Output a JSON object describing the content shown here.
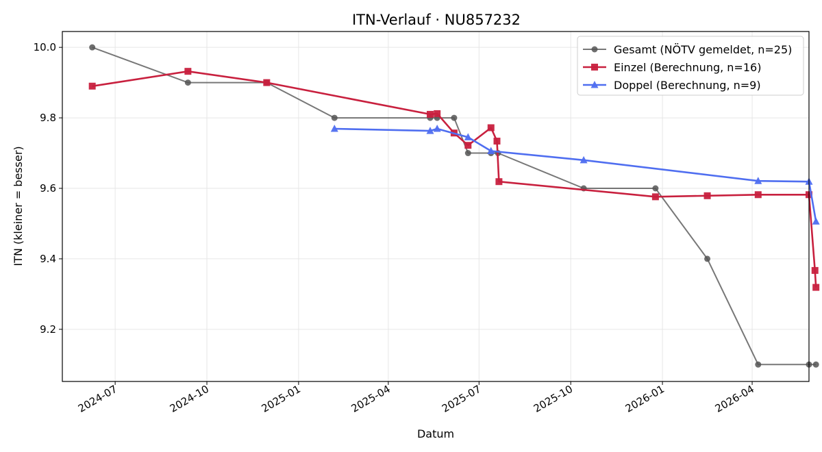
{
  "chart_data": {
    "type": "line",
    "title": "ITN-Verlauf · NU857232",
    "xlabel": "Datum",
    "ylabel": "ITN  (kleiner = besser)",
    "x_type": "date",
    "xlim": [
      "2024-05-09",
      "2026-05-28"
    ],
    "ylim": [
      9.052,
      10.045
    ],
    "x_ticks": [
      "2024-07-01",
      "2024-10-01",
      "2025-01-01",
      "2025-04-01",
      "2025-07-01",
      "2025-10-01",
      "2026-01-01",
      "2026-04-01"
    ],
    "x_tick_labels": [
      "2024-07",
      "2024-10",
      "2025-01",
      "2025-04",
      "2025-07",
      "2025-10",
      "2026-01",
      "2026-04"
    ],
    "y_ticks": [
      9.2,
      9.4,
      9.6,
      9.8,
      10.0
    ],
    "y_tick_labels": [
      "9.2",
      "9.4",
      "9.6",
      "9.8",
      "10.0"
    ],
    "grid": true,
    "legend_position": "top-right",
    "series": [
      {
        "name": "Gesamt (NÖTV gemeldet, n=25)",
        "color": "#555555",
        "marker": "circle",
        "points": [
          {
            "x": "2024-06-08",
            "y": 10.0
          },
          {
            "x": "2024-09-12",
            "y": 9.9
          },
          {
            "x": "2024-11-30",
            "y": 9.9
          },
          {
            "x": "2025-02-06",
            "y": 9.8
          },
          {
            "x": "2025-05-13",
            "y": 9.8
          },
          {
            "x": "2025-05-20",
            "y": 9.8
          },
          {
            "x": "2025-06-06",
            "y": 9.8
          },
          {
            "x": "2025-06-20",
            "y": 9.7
          },
          {
            "x": "2025-07-13",
            "y": 9.7
          },
          {
            "x": "2025-07-20",
            "y": 9.7
          },
          {
            "x": "2025-10-14",
            "y": 9.6
          },
          {
            "x": "2025-12-25",
            "y": 9.6
          },
          {
            "x": "2026-02-15",
            "y": 9.4
          },
          {
            "x": "2026-04-07",
            "y": 9.1
          },
          {
            "x": "2026-05-28",
            "y": 9.1
          },
          {
            "x": "2026-06-04",
            "y": 9.1
          }
        ]
      },
      {
        "name": "Einzel (Berechnung, n=16)",
        "color": "#c8203e",
        "marker": "square",
        "points": [
          {
            "x": "2024-06-08",
            "y": 9.89
          },
          {
            "x": "2024-09-12",
            "y": 9.932
          },
          {
            "x": "2024-11-30",
            "y": 9.9
          },
          {
            "x": "2025-05-13",
            "y": 9.81
          },
          {
            "x": "2025-05-20",
            "y": 9.812
          },
          {
            "x": "2025-06-06",
            "y": 9.757
          },
          {
            "x": "2025-06-20",
            "y": 9.722
          },
          {
            "x": "2025-07-13",
            "y": 9.772
          },
          {
            "x": "2025-07-19",
            "y": 9.734
          },
          {
            "x": "2025-07-21",
            "y": 9.619
          },
          {
            "x": "2025-12-25",
            "y": 9.576
          },
          {
            "x": "2026-02-15",
            "y": 9.579
          },
          {
            "x": "2026-04-07",
            "y": 9.582
          },
          {
            "x": "2026-05-28",
            "y": 9.582
          },
          {
            "x": "2026-06-03",
            "y": 9.367
          },
          {
            "x": "2026-06-04",
            "y": 9.319
          }
        ]
      },
      {
        "name": "Doppel (Berechnung, n=9)",
        "color": "#4f6ef0",
        "marker": "triangle",
        "points": [
          {
            "x": "2025-02-06",
            "y": 9.769
          },
          {
            "x": "2025-05-13",
            "y": 9.763
          },
          {
            "x": "2025-05-20",
            "y": 9.769
          },
          {
            "x": "2025-06-20",
            "y": 9.745
          },
          {
            "x": "2025-07-13",
            "y": 9.706
          },
          {
            "x": "2025-10-14",
            "y": 9.68
          },
          {
            "x": "2026-04-07",
            "y": 9.621
          },
          {
            "x": "2026-05-28",
            "y": 9.619
          },
          {
            "x": "2026-06-04",
            "y": 9.506
          }
        ]
      }
    ]
  }
}
